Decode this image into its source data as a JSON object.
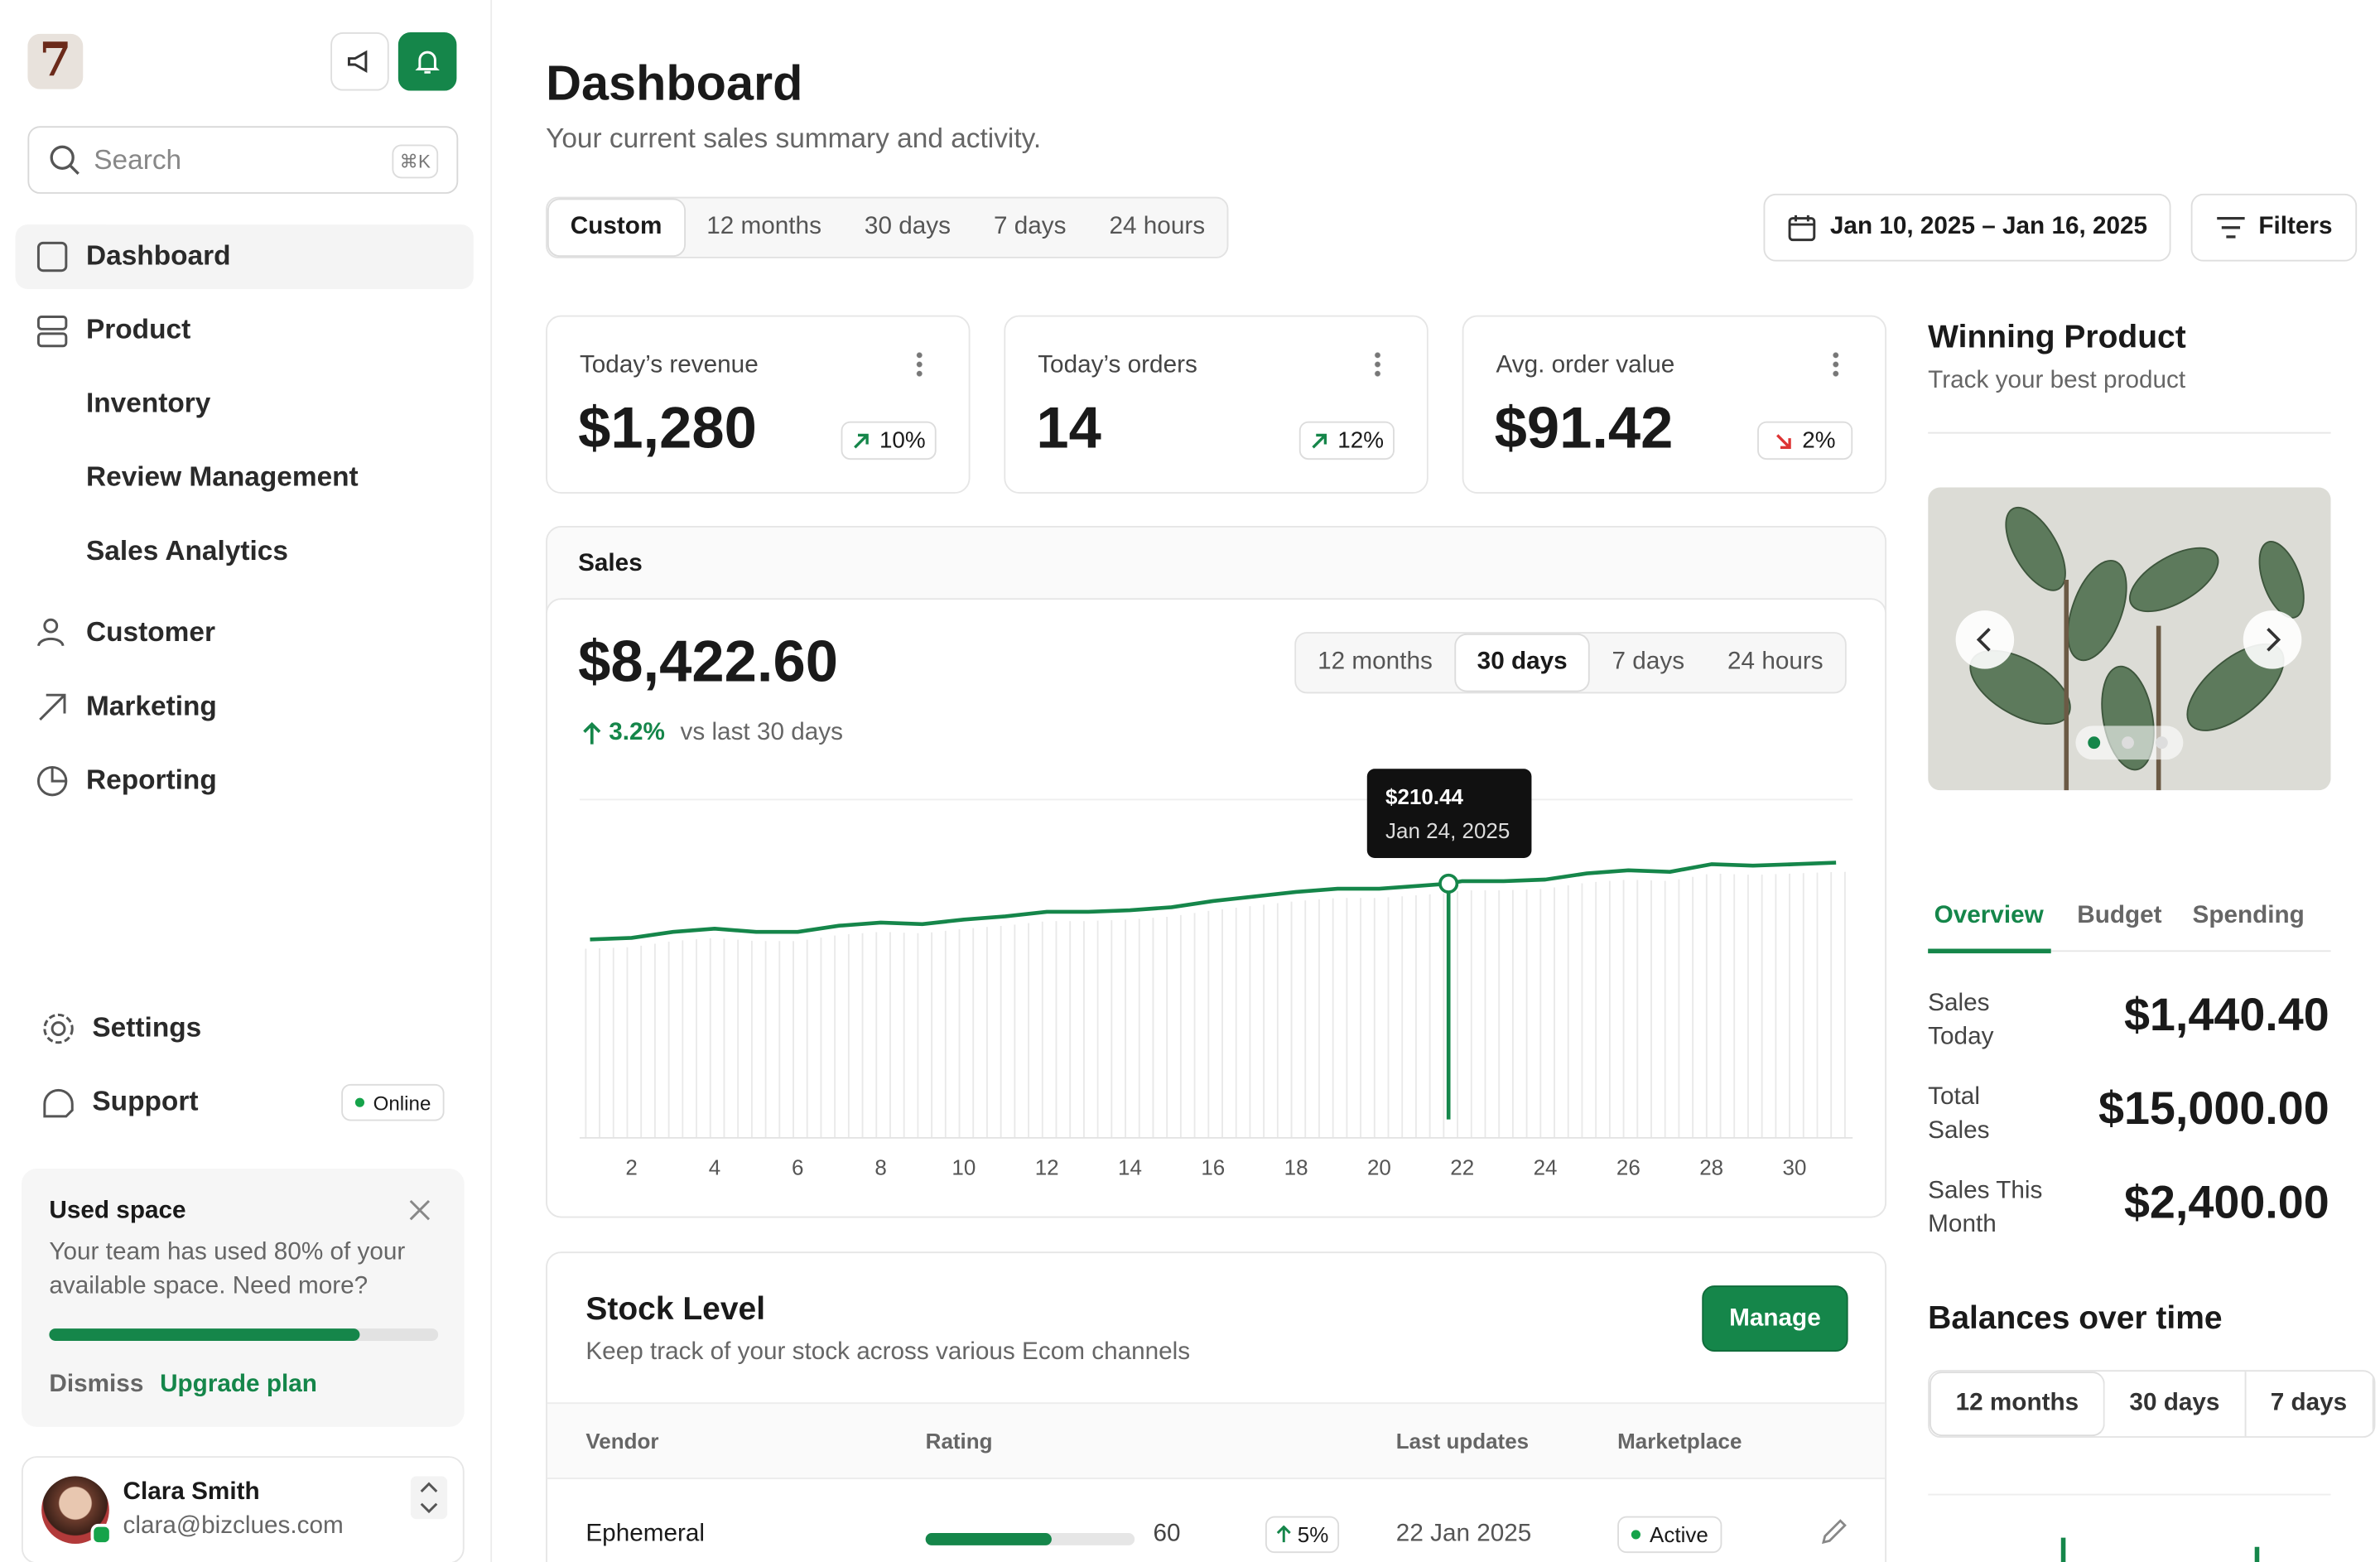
{
  "sidebar": {
    "search": "Search",
    "shortcut": "⌘K",
    "nav": [
      {
        "label": "Dashboard"
      },
      {
        "label": "Product"
      },
      {
        "label": "Inventory"
      },
      {
        "label": "Review Management"
      },
      {
        "label": "Sales Analytics"
      },
      {
        "label": "Customer"
      },
      {
        "label": "Marketing"
      },
      {
        "label": "Reporting"
      }
    ],
    "settings": "Settings",
    "support": "Support",
    "status": "Online",
    "notice": {
      "title": "Used space",
      "text": "Your team has used 80% of your available space. Need more?",
      "progress": 80,
      "dismiss": "Dismiss",
      "upgrade": "Upgrade plan"
    },
    "user": {
      "name": "Clara Smith",
      "email": "clara@bizclues.com"
    }
  },
  "header": {
    "title": "Dashboard",
    "subtitle": "Your current sales summary and activity.",
    "ranges": [
      "Custom",
      "12 months",
      "30 days",
      "7 days",
      "24 hours"
    ],
    "date_range": "Jan 10, 2025 – Jan 16, 2025",
    "filters": "Filters"
  },
  "kpis": [
    {
      "label": "Today’s revenue",
      "value": "$1,280",
      "change": "10%",
      "trend": "up"
    },
    {
      "label": "Today’s orders",
      "value": "14",
      "change": "12%",
      "trend": "up"
    },
    {
      "label": "Avg. order value",
      "value": "$91.42",
      "change": "2%",
      "trend": "down"
    }
  ],
  "sales": {
    "title": "Sales",
    "total": "$8,422.60",
    "change": "3.2%",
    "compare": "vs last 30 days",
    "ranges": [
      "12 months",
      "30 days",
      "7 days",
      "24 hours"
    ]
  },
  "chart_data": {
    "type": "line",
    "color": "#15864a",
    "x": [
      1,
      2,
      3,
      4,
      5,
      6,
      7,
      8,
      9,
      10,
      11,
      12,
      13,
      14,
      15,
      16,
      17,
      18,
      19,
      20,
      21,
      21.67,
      22,
      23,
      24,
      25,
      26,
      27,
      28,
      29,
      30,
      31
    ],
    "values": [
      164.2,
      165.5,
      170.5,
      173.1,
      170.5,
      170.5,
      175.6,
      178.2,
      176.9,
      180.7,
      183.3,
      187.1,
      187.1,
      188.4,
      190.9,
      196.0,
      199.8,
      203.6,
      206.2,
      206.2,
      208.7,
      210.44,
      212.5,
      212.5,
      213.8,
      218.9,
      221.5,
      220.2,
      226.5,
      225.3,
      226.5,
      227.8
    ],
    "xlim": [
      0.75,
      31.4
    ],
    "ylim": [
      0,
      280
    ],
    "xticks": [
      2,
      4,
      6,
      8,
      10,
      12,
      14,
      16,
      18,
      20,
      22,
      24,
      26,
      28,
      30
    ],
    "tooltip": {
      "label": "$210.44",
      "date": "Jan 24, 2025"
    }
  },
  "product": {
    "title": "Winning Product",
    "subtitle": "Track your best product",
    "tabs": [
      "Overview",
      "Budget",
      "Spending"
    ],
    "stats": [
      {
        "label": "Sales Today",
        "value": "$1,440.40"
      },
      {
        "label": "Total Sales",
        "value": "$15,000.00"
      },
      {
        "label": "Sales This Month",
        "value": "$2,400.00"
      }
    ],
    "balances": "Balances over time",
    "ranges": [
      "12 months",
      "30 days",
      "7 days"
    ]
  },
  "stock": {
    "title": "Stock Level",
    "subtitle": "Keep track of your stock across various Ecom channels",
    "button": "Manage",
    "columns": [
      "Vendor",
      "Rating",
      "Last updates",
      "Marketplace"
    ],
    "rows": [
      {
        "vendor": "Ephemeral",
        "rating": 60,
        "change": "5%",
        "date": "22 Jan 2025",
        "status": "Active"
      }
    ]
  }
}
